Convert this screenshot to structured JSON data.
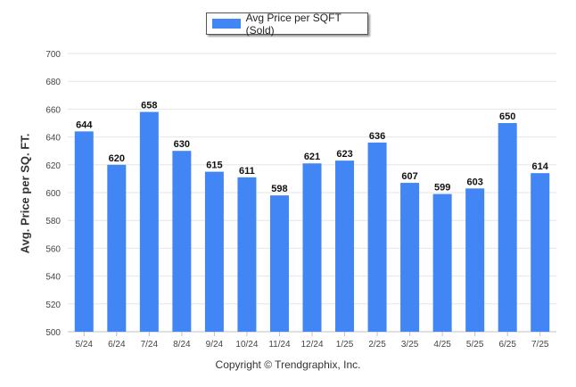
{
  "chart_data": {
    "type": "bar",
    "categories": [
      "5/24",
      "6/24",
      "7/24",
      "8/24",
      "9/24",
      "10/24",
      "11/24",
      "12/24",
      "1/25",
      "2/25",
      "3/25",
      "4/25",
      "5/25",
      "6/25",
      "7/25"
    ],
    "series": [
      {
        "name": "Avg Price per SQFT (Sold)",
        "values": [
          644,
          620,
          658,
          630,
          615,
          611,
          598,
          621,
          623,
          636,
          607,
          599,
          603,
          650,
          614
        ]
      }
    ],
    "data_labels": [
      "644",
      "620",
      "658",
      "630",
      "615",
      "611",
      "598",
      "621",
      "623",
      "636",
      "607",
      "599",
      "603",
      "650",
      "614"
    ],
    "title": "",
    "xlabel": "",
    "ylabel": "Avg. Price per SQ. FT.",
    "ylim": [
      500,
      700
    ],
    "yticks": [
      500,
      520,
      540,
      560,
      580,
      600,
      620,
      640,
      660,
      680,
      700
    ],
    "ytick_labels": [
      "500",
      "520",
      "540",
      "560",
      "580",
      "600",
      "620",
      "640",
      "660",
      "680",
      "700"
    ],
    "grid": true,
    "legend_position": "top-center",
    "colors": {
      "bar": "#4285f4",
      "grid": "#e6e6e6",
      "axis": "#c0c0c0"
    }
  },
  "footer": {
    "copyright": "Copyright © Trendgraphix, Inc."
  }
}
